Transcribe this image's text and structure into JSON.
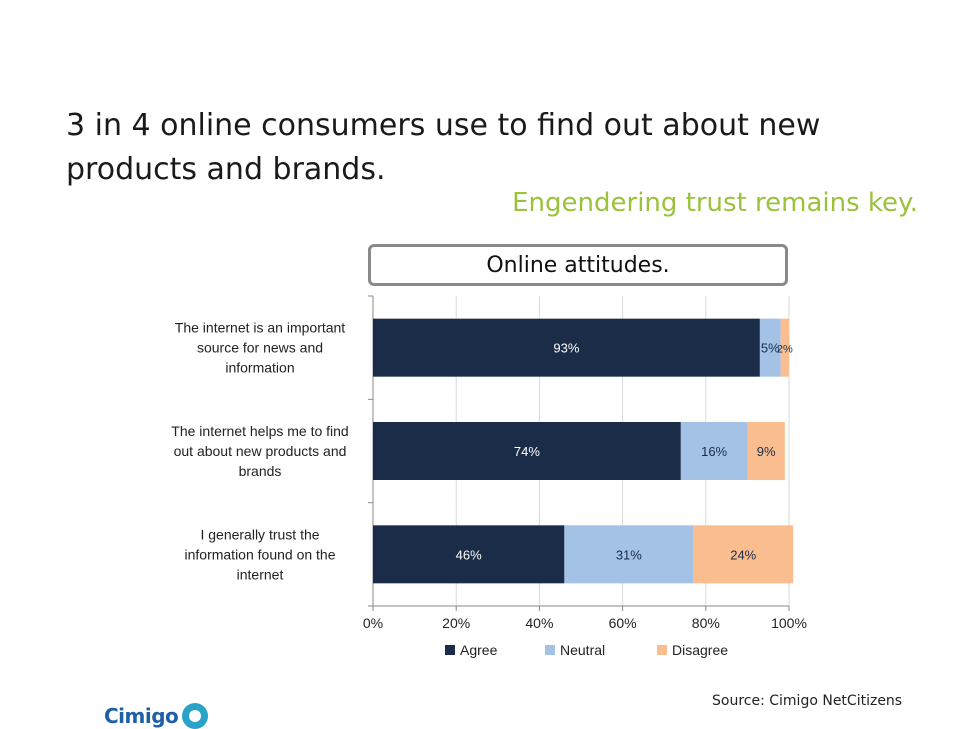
{
  "slide": {
    "headline": "3 in 4 online consumers use to find out about new products and brands.",
    "subhead": "Engendering trust remains key.",
    "source": "Source: Cimigo NetCitizens",
    "logo_text": "Cimigo"
  },
  "colors": {
    "agree": "#1a2c48",
    "neutral": "#a3c2e6",
    "disagree": "#f9bd8f",
    "headline": "#1a1a1a",
    "subhead": "#9bc23c"
  },
  "chart_data": {
    "type": "bar",
    "orientation": "horizontal",
    "stacked": true,
    "title": "Online attitudes.",
    "categories": [
      [
        "The internet is an important",
        "source for news and",
        "information"
      ],
      [
        "The internet helps me to find",
        "out about new products and",
        "brands"
      ],
      [
        "I generally trust the",
        "information found on the",
        "internet"
      ]
    ],
    "series": [
      {
        "name": "Agree",
        "values": [
          93,
          74,
          46
        ],
        "labels": [
          "93%",
          "74%",
          "46%"
        ]
      },
      {
        "name": "Neutral",
        "values": [
          5,
          16,
          31
        ],
        "labels": [
          "5%",
          "16%",
          "31%"
        ]
      },
      {
        "name": "Disagree",
        "values": [
          2,
          9,
          24
        ],
        "labels": [
          "2%",
          "9%",
          "24%"
        ]
      }
    ],
    "xlim": [
      0,
      100
    ],
    "xticks": [
      "0%",
      "20%",
      "40%",
      "60%",
      "80%",
      "100%"
    ],
    "xlabel": "",
    "ylabel": "",
    "legend": "bottom",
    "grid": true
  }
}
